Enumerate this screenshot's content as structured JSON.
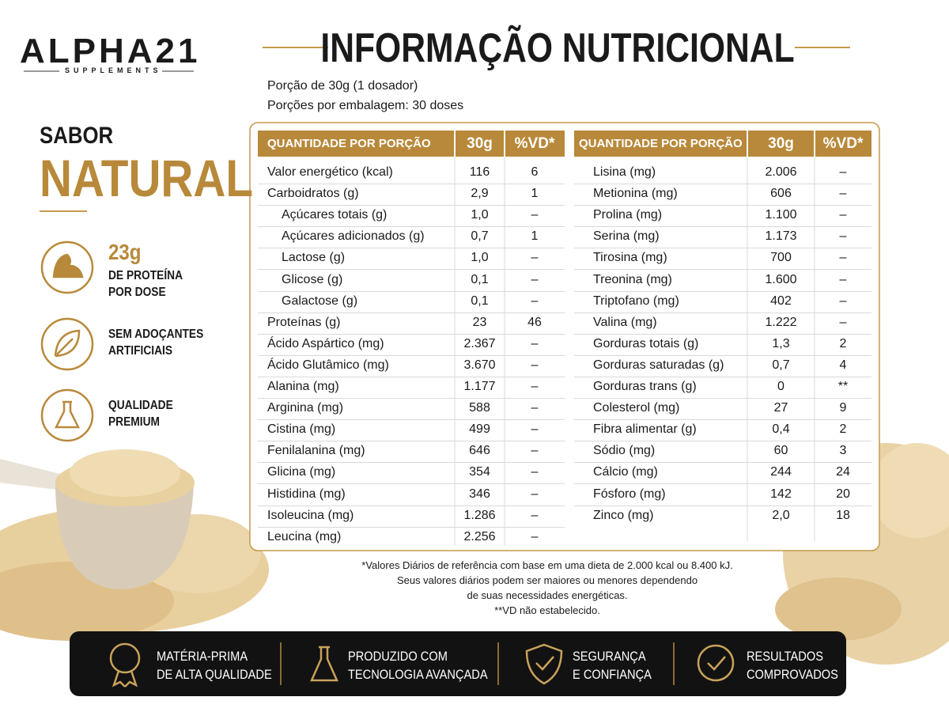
{
  "brand": {
    "name": "ALPHA21",
    "tagline": "SUPPLEMENTS"
  },
  "title": "INFORMAÇÃO NUTRICIONAL",
  "serving": [
    "Porção de 30g (1 dosador)",
    "Porções por embalagem: 30 doses"
  ],
  "flavor": {
    "label": "SABOR",
    "value": "NATURAL"
  },
  "features": [
    {
      "highlight": "23g",
      "lines": [
        "DE PROTEÍNA",
        "POR DOSE"
      ]
    },
    {
      "lines": [
        "SEM ADOÇANTES",
        "ARTIFICIAIS"
      ]
    },
    {
      "lines": [
        "QUALIDADE",
        "PREMIUM"
      ]
    }
  ],
  "tables": [
    {
      "header": [
        "QUANTIDADE POR PORÇÃO",
        "30g",
        "%VD*"
      ],
      "rows": [
        [
          "Valor energético (kcal)",
          "116",
          "6"
        ],
        [
          "Carboidratos (g)",
          "2,9",
          "1"
        ],
        [
          "Açúcares totais (g)",
          "1,0",
          "–"
        ],
        [
          "Açúcares adicionados (g)",
          "0,7",
          "1"
        ],
        [
          "Lactose (g)",
          "1,0",
          "–"
        ],
        [
          "Glicose (g)",
          "0,1",
          "–"
        ],
        [
          "Galactose (g)",
          "0,1",
          "–"
        ],
        [
          "Proteínas (g)",
          "23",
          "46"
        ],
        [
          "Ácido Aspártico (mg)",
          "2.367",
          "–"
        ],
        [
          "Ácido Glutâmico (mg)",
          "3.670",
          "–"
        ],
        [
          "Alanina (mg)",
          "1.177",
          "–"
        ],
        [
          "Arginina (mg)",
          "588",
          "–"
        ],
        [
          "Cistina (mg)",
          "499",
          "–"
        ],
        [
          "Fenilalanina (mg)",
          "646",
          "–"
        ],
        [
          "Glicina (mg)",
          "354",
          "–"
        ],
        [
          "Histidina (mg)",
          "346",
          "–"
        ],
        [
          "Isoleucina (mg)",
          "1.286",
          "–"
        ],
        [
          "Leucina (mg)",
          "2.256",
          "–"
        ]
      ]
    },
    {
      "header": [
        "QUANTIDADE POR PORÇÃO",
        "30g",
        "%VD*"
      ],
      "rows": [
        [
          "Lisina (mg)",
          "2.006",
          "–"
        ],
        [
          "Metionina (mg)",
          "606",
          "–"
        ],
        [
          "Prolina (mg)",
          "1.100",
          "–"
        ],
        [
          "Serina (mg)",
          "1.173",
          "–"
        ],
        [
          "Tirosina (mg)",
          "700",
          "–"
        ],
        [
          "Treonina (mg)",
          "1.600",
          "–"
        ],
        [
          "Triptofano (mg)",
          "402",
          "–"
        ],
        [
          "Valina (mg)",
          "1.222",
          "–"
        ],
        [
          "Gorduras totais (g)",
          "1,3",
          "2"
        ],
        [
          "Gorduras saturadas (g)",
          "0,7",
          "4"
        ],
        [
          "Gorduras trans (g)",
          "0",
          "**"
        ],
        [
          "Colesterol (mg)",
          "27",
          "9"
        ],
        [
          "Fibra alimentar (g)",
          "0,4",
          "2"
        ],
        [
          "Sódio (mg)",
          "60",
          "3"
        ],
        [
          "Cálcio (mg)",
          "244",
          "24"
        ],
        [
          "Fósforo (mg)",
          "142",
          "20"
        ],
        [
          "Zinco (mg)",
          "2,0",
          "18"
        ]
      ]
    }
  ],
  "footnotes": [
    "*Valores Diários de referência com base em uma dieta de 2.000 kcal ou 8.400 kJ.",
    "Seus valores diários podem ser maiores ou menores dependendo",
    "de suas necessidades energéticas.",
    "**VD não estabelecido."
  ],
  "badges": [
    {
      "lines": [
        "MATÉRIA-PRIMA",
        "DE ALTA QUALIDADE"
      ]
    },
    {
      "lines": [
        "PRODUZIDO COM",
        "TECNOLOGIA AVANÇADA"
      ]
    },
    {
      "lines": [
        "SEGURANÇA",
        "E CONFIANÇA"
      ]
    },
    {
      "lines": [
        "RESULTADOS",
        "COMPROVADOS"
      ]
    }
  ]
}
